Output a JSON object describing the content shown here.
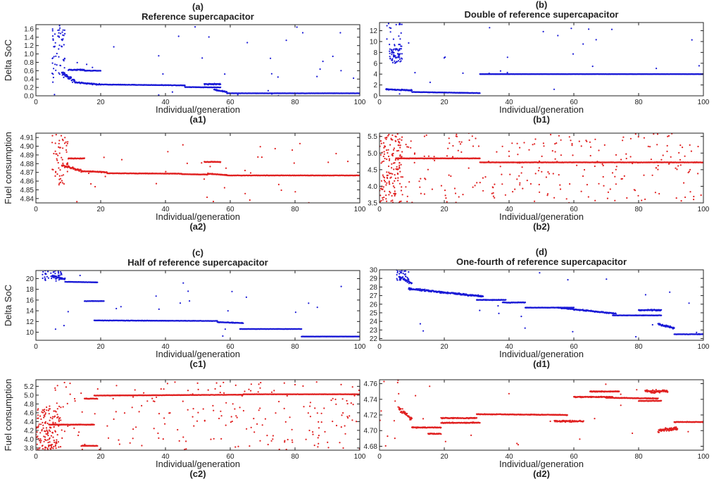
{
  "chart_data": [
    {
      "id": "a1",
      "type": "scatter",
      "letter": "(a)",
      "title": "Reference supercapacitor",
      "sublabel": "(a1)",
      "xlabel": "Individual/generation",
      "ylabel": "Delta SoC",
      "color": "#1a1ad6",
      "xlim": [
        0,
        100
      ],
      "ylim": [
        0,
        1.7
      ],
      "xticks": [
        0,
        20,
        40,
        60,
        80,
        100
      ],
      "yticks": [
        0,
        0.2,
        0.4,
        0.6,
        0.8,
        1.0,
        1.2,
        1.4,
        1.6
      ],
      "ytick_labels": [
        "0.0",
        "0.2",
        "0.4",
        "0.6",
        "0.8",
        "1.0",
        "1.2",
        "1.4",
        "1.6"
      ],
      "segments": [
        {
          "x0": 8,
          "x1": 12,
          "y0": 0.55,
          "y1": 0.35,
          "spread": 0.08
        },
        {
          "x0": 12,
          "x1": 20,
          "y0": 0.32,
          "y1": 0.27,
          "spread": 0.02
        },
        {
          "x0": 20,
          "x1": 46,
          "y0": 0.27,
          "y1": 0.25,
          "spread": 0.008
        },
        {
          "x0": 46,
          "x1": 57,
          "y0": 0.21,
          "y1": 0.2,
          "spread": 0.008
        },
        {
          "x0": 52,
          "x1": 57,
          "y0": 0.28,
          "y1": 0.28,
          "spread": 0.02
        },
        {
          "x0": 55,
          "x1": 59,
          "y0": 0.15,
          "y1": 0.09,
          "spread": 0.02
        },
        {
          "x0": 59,
          "x1": 100,
          "y0": 0.06,
          "y1": 0.06,
          "spread": 0.004
        },
        {
          "x0": 10,
          "x1": 15,
          "y0": 0.62,
          "y1": 0.62,
          "spread": 0.02
        },
        {
          "x0": 15,
          "x1": 20,
          "y0": 0.6,
          "y1": 0.6,
          "spread": 0.01
        }
      ],
      "clusters": [
        {
          "xmin": 5,
          "xmax": 9,
          "ymin": 0.3,
          "ymax": 1.7,
          "n": 60
        }
      ],
      "scatter": {
        "xmin": 5,
        "xmax": 100,
        "ymin": 0,
        "ymax": 1.7,
        "n": 35
      }
    },
    {
      "id": "b1",
      "type": "scatter",
      "letter": "(b)",
      "title": "Double of reference supercapacitor",
      "sublabel": "(b1)",
      "xlabel": "Individual/generation",
      "ylabel": "",
      "color": "#1a1ad6",
      "xlim": [
        0,
        100
      ],
      "ylim": [
        0,
        13.5
      ],
      "xticks": [
        0,
        20,
        40,
        60,
        80,
        100
      ],
      "yticks": [
        0,
        2,
        4,
        6,
        8,
        10,
        12
      ],
      "ytick_labels": [
        "0",
        "2",
        "4",
        "6",
        "8",
        "10",
        "12"
      ],
      "segments": [
        {
          "x0": 2,
          "x1": 10,
          "y0": 1.2,
          "y1": 1.0,
          "spread": 0.15
        },
        {
          "x0": 10,
          "x1": 31,
          "y0": 0.7,
          "y1": 0.5,
          "spread": 0.05
        },
        {
          "x0": 31,
          "x1": 100,
          "y0": 4.0,
          "y1": 4.0,
          "spread": 0.03
        }
      ],
      "clusters": [
        {
          "xmin": 3,
          "xmax": 7,
          "ymin": 6,
          "ymax": 9.5,
          "n": 70
        },
        {
          "xmin": 2,
          "xmax": 7,
          "ymin": 10,
          "ymax": 13.5,
          "n": 15
        }
      ],
      "scatter": {
        "xmin": 5,
        "xmax": 100,
        "ymin": 0,
        "ymax": 13.5,
        "n": 25
      }
    },
    {
      "id": "a2",
      "type": "scatter",
      "letter": "",
      "title": "",
      "sublabel": "(a2)",
      "xlabel": "Individual/generation",
      "ylabel": "Fuel consumption",
      "color": "#e02020",
      "xlim": [
        0,
        100
      ],
      "ylim": [
        4.835,
        4.915
      ],
      "xticks": [
        0,
        20,
        40,
        60,
        80,
        100
      ],
      "yticks": [
        4.84,
        4.85,
        4.86,
        4.87,
        4.88,
        4.89,
        4.9,
        4.91
      ],
      "ytick_labels": [
        "4.84",
        "4.85",
        "4.86",
        "4.87",
        "4.88",
        "4.89",
        "4.90",
        "4.91"
      ],
      "segments": [
        {
          "x0": 8,
          "x1": 14,
          "y0": 4.878,
          "y1": 4.872,
          "spread": 0.002
        },
        {
          "x0": 14,
          "x1": 22,
          "y0": 4.8715,
          "y1": 4.87,
          "spread": 0.0008
        },
        {
          "x0": 22,
          "x1": 45,
          "y0": 4.869,
          "y1": 4.8685,
          "spread": 0.0004
        },
        {
          "x0": 45,
          "x1": 53,
          "y0": 4.868,
          "y1": 4.8675,
          "spread": 0.0004
        },
        {
          "x0": 53,
          "x1": 59,
          "y0": 4.8685,
          "y1": 4.867,
          "spread": 0.0008
        },
        {
          "x0": 59,
          "x1": 100,
          "y0": 4.8665,
          "y1": 4.8665,
          "spread": 0.0003
        },
        {
          "x0": 10,
          "x1": 15,
          "y0": 4.886,
          "y1": 4.886,
          "spread": 0.0006
        },
        {
          "x0": 52,
          "x1": 57,
          "y0": 4.882,
          "y1": 4.882,
          "spread": 0.0006
        }
      ],
      "clusters": [
        {
          "xmin": 5,
          "xmax": 10,
          "ymin": 4.855,
          "ymax": 4.915,
          "n": 55
        }
      ],
      "scatter": {
        "xmin": 5,
        "xmax": 100,
        "ymin": 4.835,
        "ymax": 4.91,
        "n": 40
      }
    },
    {
      "id": "b2",
      "type": "scatter",
      "letter": "",
      "title": "",
      "sublabel": "(b2)",
      "xlabel": "Individual/generation",
      "ylabel": "",
      "color": "#e02020",
      "xlim": [
        0,
        100
      ],
      "ylim": [
        3.5,
        5.6
      ],
      "xticks": [
        0,
        20,
        40,
        60,
        80,
        100
      ],
      "yticks": [
        3.5,
        4.0,
        4.5,
        5.0,
        5.5
      ],
      "ytick_labels": [
        "3.5",
        "4.0",
        "4.5",
        "5.0",
        "5.5"
      ],
      "segments": [
        {
          "x0": 5,
          "x1": 31,
          "y0": 4.84,
          "y1": 4.84,
          "spread": 0.01
        },
        {
          "x0": 31,
          "x1": 100,
          "y0": 4.72,
          "y1": 4.72,
          "spread": 0.008
        }
      ],
      "clusters": [
        {
          "xmin": 0,
          "xmax": 7,
          "ymin": 3.5,
          "ymax": 5.6,
          "n": 150
        }
      ],
      "scatter": {
        "xmin": 5,
        "xmax": 100,
        "ymin": 3.5,
        "ymax": 5.6,
        "n": 260
      }
    },
    {
      "id": "c1",
      "type": "scatter",
      "letter": "(c)",
      "title": "Half of reference supercapacitor",
      "sublabel": "(c1)",
      "xlabel": "Individual/generation",
      "ylabel": "Delta SoC",
      "color": "#1a1ad6",
      "xlim": [
        0,
        100
      ],
      "ylim": [
        8.5,
        21.5
      ],
      "xticks": [
        0,
        20,
        40,
        60,
        80,
        100
      ],
      "yticks": [
        10,
        12,
        14,
        16,
        18,
        20
      ],
      "ytick_labels": [
        "10",
        "12",
        "14",
        "16",
        "18",
        "20"
      ],
      "segments": [
        {
          "x0": 5,
          "x1": 9,
          "y0": 20.5,
          "y1": 19.8,
          "spread": 0.3
        },
        {
          "x0": 9,
          "x1": 19,
          "y0": 19.4,
          "y1": 19.3,
          "spread": 0.05
        },
        {
          "x0": 15,
          "x1": 21,
          "y0": 15.8,
          "y1": 15.8,
          "spread": 0.05
        },
        {
          "x0": 18,
          "x1": 56,
          "y0": 12.2,
          "y1": 12.1,
          "spread": 0.05
        },
        {
          "x0": 56,
          "x1": 64,
          "y0": 11.9,
          "y1": 11.7,
          "spread": 0.1
        },
        {
          "x0": 63,
          "x1": 82,
          "y0": 10.6,
          "y1": 10.6,
          "spread": 0.03
        },
        {
          "x0": 82,
          "x1": 100,
          "y0": 9.2,
          "y1": 9.2,
          "spread": 0.03
        }
      ],
      "clusters": [
        {
          "xmin": 2,
          "xmax": 8,
          "ymin": 19.5,
          "ymax": 21.5,
          "n": 40
        }
      ],
      "scatter": {
        "xmin": 2,
        "xmax": 100,
        "ymin": 9,
        "ymax": 21.5,
        "n": 22
      }
    },
    {
      "id": "d1",
      "type": "scatter",
      "letter": "(d)",
      "title": "One-fourth of reference supercapacitor",
      "sublabel": "(d1)",
      "xlabel": "Individual/generation",
      "ylabel": "",
      "color": "#1a1ad6",
      "xlim": [
        0,
        100
      ],
      "ylim": [
        21.8,
        30
      ],
      "xticks": [
        0,
        20,
        40,
        60,
        80,
        100
      ],
      "yticks": [
        22,
        23,
        24,
        25,
        26,
        27,
        28,
        29,
        30
      ],
      "ytick_labels": [
        "22",
        "23",
        "24",
        "25",
        "26",
        "27",
        "28",
        "29",
        "30"
      ],
      "segments": [
        {
          "x0": 6,
          "x1": 10,
          "y0": 29.2,
          "y1": 28.4,
          "spread": 0.3
        },
        {
          "x0": 9,
          "x1": 32,
          "y0": 27.8,
          "y1": 26.9,
          "spread": 0.15
        },
        {
          "x0": 30,
          "x1": 39,
          "y0": 26.5,
          "y1": 26.5,
          "spread": 0.05
        },
        {
          "x0": 38,
          "x1": 45,
          "y0": 26.2,
          "y1": 26.2,
          "spread": 0.05
        },
        {
          "x0": 45,
          "x1": 60,
          "y0": 25.6,
          "y1": 25.6,
          "spread": 0.03
        },
        {
          "x0": 55,
          "x1": 73,
          "y0": 25.6,
          "y1": 24.9,
          "spread": 0.1
        },
        {
          "x0": 72,
          "x1": 87,
          "y0": 24.7,
          "y1": 24.7,
          "spread": 0.03
        },
        {
          "x0": 80,
          "x1": 87,
          "y0": 25.3,
          "y1": 25.3,
          "spread": 0.1
        },
        {
          "x0": 86,
          "x1": 91,
          "y0": 23.7,
          "y1": 23.2,
          "spread": 0.2
        },
        {
          "x0": 91,
          "x1": 100,
          "y0": 22.5,
          "y1": 22.5,
          "spread": 0.03
        }
      ],
      "clusters": [
        {
          "xmin": 5,
          "xmax": 9,
          "ymin": 28.8,
          "ymax": 30,
          "n": 30
        }
      ],
      "scatter": {
        "xmin": 5,
        "xmax": 100,
        "ymin": 22,
        "ymax": 30,
        "n": 20
      }
    },
    {
      "id": "c2",
      "type": "scatter",
      "letter": "",
      "title": "",
      "sublabel": "(c2)",
      "xlabel": "Individual/generation",
      "ylabel": "Fuel consumption",
      "color": "#e02020",
      "xlim": [
        0,
        100
      ],
      "ylim": [
        3.75,
        5.35
      ],
      "xticks": [
        0,
        20,
        40,
        60,
        80,
        100
      ],
      "yticks": [
        3.8,
        4.0,
        4.2,
        4.4,
        4.6,
        4.8,
        5.0,
        5.2
      ],
      "ytick_labels": [
        "3.8",
        "4.0",
        "4.2",
        "4.4",
        "4.6",
        "4.8",
        "5.0",
        "5.2"
      ],
      "segments": [
        {
          "x0": 4,
          "x1": 18,
          "y0": 4.33,
          "y1": 4.33,
          "spread": 0.01
        },
        {
          "x0": 14,
          "x1": 19,
          "y0": 3.85,
          "y1": 3.85,
          "spread": 0.01
        },
        {
          "x0": 15,
          "x1": 19,
          "y0": 4.92,
          "y1": 4.92,
          "spread": 0.01
        },
        {
          "x0": 18,
          "x1": 64,
          "y0": 4.99,
          "y1": 5.01,
          "spread": 0.006
        },
        {
          "x0": 64,
          "x1": 100,
          "y0": 5.02,
          "y1": 5.02,
          "spread": 0.005
        }
      ],
      "clusters": [
        {
          "xmin": 0,
          "xmax": 8,
          "ymin": 3.75,
          "ymax": 4.75,
          "n": 150
        }
      ],
      "scatter": {
        "xmin": 5,
        "xmax": 100,
        "ymin": 3.75,
        "ymax": 5.3,
        "n": 220
      }
    },
    {
      "id": "d2",
      "type": "scatter",
      "letter": "",
      "title": "",
      "sublabel": "(d2)",
      "xlabel": "Individual/generation",
      "ylabel": "",
      "color": "#e02020",
      "xlim": [
        0,
        100
      ],
      "ylim": [
        4.675,
        4.765
      ],
      "xticks": [
        0,
        20,
        40,
        60,
        80,
        100
      ],
      "yticks": [
        4.68,
        4.7,
        4.72,
        4.74,
        4.76
      ],
      "ytick_labels": [
        "4.68",
        "4.70",
        "4.72",
        "4.74",
        "4.76"
      ],
      "segments": [
        {
          "x0": 6,
          "x1": 10,
          "y0": 4.728,
          "y1": 4.715,
          "spread": 0.004
        },
        {
          "x0": 10,
          "x1": 19,
          "y0": 4.704,
          "y1": 4.704,
          "spread": 0.0008
        },
        {
          "x0": 15,
          "x1": 19,
          "y0": 4.696,
          "y1": 4.696,
          "spread": 0.0008
        },
        {
          "x0": 19,
          "x1": 30,
          "y0": 4.716,
          "y1": 4.716,
          "spread": 0.0008
        },
        {
          "x0": 19,
          "x1": 31,
          "y0": 4.71,
          "y1": 4.71,
          "spread": 0.0008
        },
        {
          "x0": 30,
          "x1": 58,
          "y0": 4.721,
          "y1": 4.72,
          "spread": 0.0006
        },
        {
          "x0": 54,
          "x1": 63,
          "y0": 4.712,
          "y1": 4.712,
          "spread": 0.0015
        },
        {
          "x0": 60,
          "x1": 72,
          "y0": 4.743,
          "y1": 4.743,
          "spread": 0.0008
        },
        {
          "x0": 65,
          "x1": 74,
          "y0": 4.75,
          "y1": 4.75,
          "spread": 0.0008
        },
        {
          "x0": 70,
          "x1": 86,
          "y0": 4.742,
          "y1": 4.741,
          "spread": 0.0006
        },
        {
          "x0": 80,
          "x1": 87,
          "y0": 4.738,
          "y1": 4.738,
          "spread": 0.0006
        },
        {
          "x0": 82,
          "x1": 89,
          "y0": 4.75,
          "y1": 4.75,
          "spread": 0.003
        },
        {
          "x0": 86,
          "x1": 92,
          "y0": 4.7,
          "y1": 4.703,
          "spread": 0.003
        },
        {
          "x0": 91,
          "x1": 100,
          "y0": 4.711,
          "y1": 4.711,
          "spread": 0.0006
        }
      ],
      "clusters": [
        {
          "xmin": 0,
          "xmax": 6,
          "ymin": 4.675,
          "ymax": 4.765,
          "n": 12
        }
      ],
      "scatter": {
        "xmin": 2,
        "xmax": 100,
        "ymin": 4.68,
        "ymax": 4.76,
        "n": 18
      }
    }
  ]
}
